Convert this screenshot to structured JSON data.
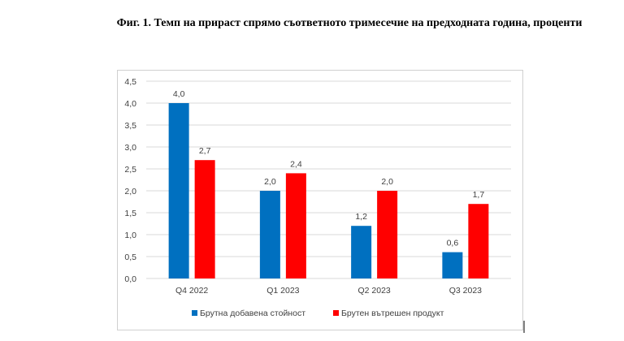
{
  "chart_data": {
    "type": "bar",
    "title": "Фиг. 1. Темп на прираст спрямо съответното тримесечие на предходната година, проценти",
    "xlabel": "",
    "ylabel": "",
    "categories": [
      "Q4 2022",
      "Q1 2023",
      "Q2 2023",
      "Q3 2023"
    ],
    "series": [
      {
        "name": "Брутна добавена стойност",
        "color": "#0070C0",
        "values": [
          4.0,
          2.0,
          1.2,
          0.6
        ],
        "labels": [
          "4,0",
          "2,0",
          "1,2",
          "0,6"
        ]
      },
      {
        "name": "Брутен вътрешен продукт",
        "color": "#FF0000",
        "values": [
          2.7,
          2.4,
          2.0,
          1.7
        ],
        "labels": [
          "2,7",
          "2,4",
          "2,0",
          "1,7"
        ]
      }
    ],
    "ylim": [
      0,
      4.5
    ],
    "yticks": [
      0,
      0.5,
      1,
      1.5,
      2,
      2.5,
      3,
      3.5,
      4,
      4.5
    ],
    "ytick_labels": [
      "0,0",
      "0,5",
      "1,0",
      "1,5",
      "2,0",
      "2,5",
      "3,0",
      "3,5",
      "4,0",
      "4,5"
    ],
    "grid": true,
    "legend": "bottom"
  }
}
